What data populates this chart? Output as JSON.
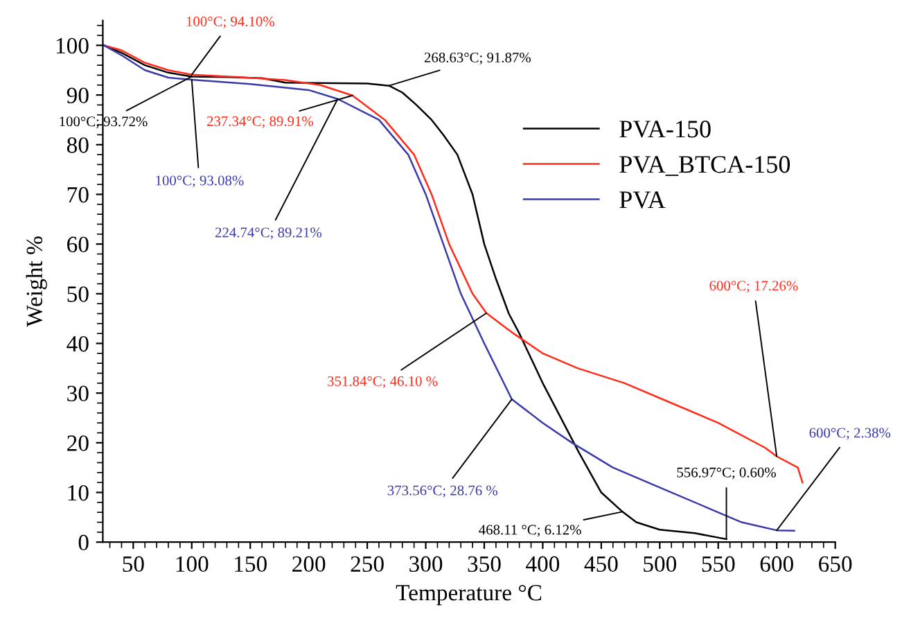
{
  "chart_data": {
    "type": "line",
    "xlabel": "Temperature °C",
    "ylabel": "Weight %",
    "xlim": [
      24,
      650
    ],
    "ylim": [
      0,
      105
    ],
    "xticks": [
      50,
      100,
      150,
      200,
      250,
      300,
      350,
      400,
      450,
      500,
      550,
      600,
      650
    ],
    "yticks": [
      0,
      10,
      20,
      30,
      40,
      50,
      60,
      70,
      80,
      90,
      100
    ],
    "grid": false,
    "legend": "right",
    "marker": "none",
    "line_style": "solid",
    "series": [
      {
        "name": "PVA-150",
        "color": "#000000",
        "x": [
          25,
          40,
          60,
          80,
          100,
          130,
          160,
          180,
          220,
          250,
          268.63,
          280,
          292,
          305,
          315,
          327,
          340,
          350,
          360,
          371,
          380,
          400,
          431,
          450,
          468.11,
          480,
          500,
          530,
          556.97
        ],
        "values": [
          100,
          98.5,
          96,
          94.5,
          93.72,
          93.6,
          93.4,
          92.5,
          92.4,
          92.3,
          91.87,
          90.5,
          88,
          85,
          82,
          78,
          70,
          60,
          53,
          46,
          42,
          32,
          18,
          10,
          6.12,
          4,
          2.5,
          1.8,
          0.6
        ]
      },
      {
        "name": "PVA_BTCA-150",
        "color": "#ff2a1a",
        "x": [
          25,
          40,
          60,
          80,
          100,
          140,
          180,
          210,
          237.34,
          265,
          290,
          305,
          320,
          340,
          351.84,
          375,
          400,
          430,
          470,
          510,
          550,
          590,
          600,
          618,
          622
        ],
        "values": [
          100,
          99,
          96.5,
          95,
          94.1,
          93.6,
          93,
          92,
          89.91,
          85,
          78,
          70,
          60,
          50,
          46.1,
          42,
          38,
          35,
          32,
          28,
          24,
          19,
          17.26,
          15,
          12
        ]
      },
      {
        "name": "PVA",
        "color": "#3a3aa8",
        "x": [
          25,
          40,
          60,
          80,
          100,
          150,
          200,
          224.74,
          260,
          285,
          300,
          315,
          330,
          350,
          373.56,
          400,
          425,
          460,
          500,
          540,
          570,
          600,
          615
        ],
        "values": [
          100,
          98,
          95,
          93.5,
          93.08,
          92.2,
          91,
          89.21,
          85,
          78,
          70,
          60,
          50,
          40,
          28.76,
          24,
          20,
          15,
          11,
          7,
          4,
          2.38,
          2.3
        ]
      }
    ],
    "annotations": [
      {
        "text": "100°C; 94.10%",
        "x": 100,
        "y": 94.1
      },
      {
        "text": "100°C; 93.72%",
        "x": 100,
        "y": 93.72
      },
      {
        "text": "100°C; 93.08%",
        "x": 100,
        "y": 93.08
      },
      {
        "text": "237.34°C; 89.91%",
        "x": 237.34,
        "y": 89.91
      },
      {
        "text": "224.74°C; 89.21%",
        "x": 224.74,
        "y": 89.21
      },
      {
        "text": "268.63°C; 91.87%",
        "x": 268.63,
        "y": 91.87
      },
      {
        "text": "351.84°C; 46.10 %",
        "x": 351.84,
        "y": 46.1
      },
      {
        "text": "373.56°C; 28.76 %",
        "x": 373.56,
        "y": 28.76
      },
      {
        "text": "468.11 °C; 6.12%",
        "x": 468.11,
        "y": 6.12
      },
      {
        "text": "556.97°C; 0.60%",
        "x": 556.97,
        "y": 0.6
      },
      {
        "text": "600°C; 17.26%",
        "x": 600,
        "y": 17.26
      },
      {
        "text": "600°C; 2.38%",
        "x": 600,
        "y": 2.38
      }
    ]
  }
}
